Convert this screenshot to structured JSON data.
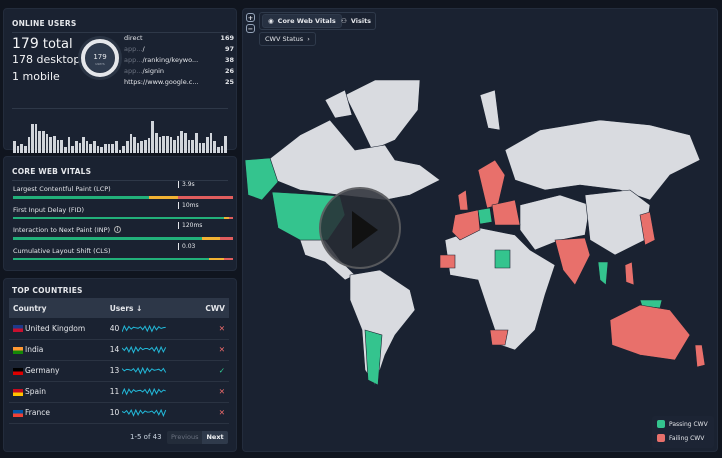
{
  "online": {
    "title": "ONLINE USERS",
    "total": "179",
    "total_label": "total",
    "desktop": "178",
    "desktop_label": "desktop",
    "mobile": "1",
    "mobile_label": "mobile",
    "donut_value": "179",
    "donut_label": "users",
    "referrers": [
      {
        "prefix": "",
        "name": "direct",
        "count": "169"
      },
      {
        "prefix": "app...",
        "name": "/",
        "count": "97"
      },
      {
        "prefix": "app...",
        "name": "/ranking/keywo...",
        "count": "38"
      },
      {
        "prefix": "app...",
        "name": "/signin",
        "count": "26"
      },
      {
        "prefix": "",
        "name": "https://www.google.c...",
        "count": "25"
      }
    ],
    "activity": [
      8,
      5,
      6,
      5,
      11,
      20,
      20,
      15,
      15,
      13,
      11,
      12,
      9,
      9,
      4,
      11,
      5,
      8,
      7,
      11,
      8,
      6,
      8,
      5,
      4,
      6,
      6,
      6,
      8,
      2,
      5,
      8,
      13,
      11,
      7,
      8,
      9,
      10,
      22,
      14,
      11,
      12,
      12,
      11,
      9,
      12,
      15,
      14,
      9,
      9,
      14,
      7,
      7,
      11,
      14,
      8,
      4,
      5,
      12
    ]
  },
  "cwv": {
    "title": "CORE WEB VITALS",
    "metrics": [
      {
        "label": "Largest Contentful Paint (LCP)",
        "value": "3.9s",
        "good": 62,
        "ni": 13,
        "poor": 25
      },
      {
        "label": "First Input Delay (FID)",
        "value": "10ms",
        "good": 96,
        "ni": 2,
        "poor": 2
      },
      {
        "label": "Interaction to Next Paint (INP)",
        "value": "120ms",
        "good": 86,
        "ni": 8,
        "poor": 6
      },
      {
        "label": "Cumulative Layout Shift (CLS)",
        "value": "0.03",
        "good": 89,
        "ni": 7,
        "poor": 4
      }
    ]
  },
  "countries": {
    "title": "TOP COUNTRIES",
    "headers": {
      "country": "Country",
      "users": "Users ↓",
      "cwv": "CWV"
    },
    "rows": [
      {
        "name": "United Kingdom",
        "users": "40",
        "pass": false,
        "flag": [
          "#1e3a8a",
          "#c8102e"
        ]
      },
      {
        "name": "India",
        "users": "14",
        "pass": false,
        "flag": [
          "#ff9933",
          "#138808"
        ]
      },
      {
        "name": "Germany",
        "users": "13",
        "pass": true,
        "flag": [
          "#000000",
          "#dd0000"
        ]
      },
      {
        "name": "Spain",
        "users": "11",
        "pass": false,
        "flag": [
          "#c60b1e",
          "#ffc400"
        ]
      },
      {
        "name": "France",
        "users": "10",
        "pass": false,
        "flag": [
          "#0055a4",
          "#ef4135"
        ]
      }
    ],
    "pagination": "1-5 of 43",
    "prev": "Previous",
    "next": "Next",
    "fail_symbol": "✕",
    "pass_symbol": "✓"
  },
  "map": {
    "tab_cwv": "Core Web Vitals",
    "tab_visits": "Visits",
    "filter": "CWV Status",
    "zoom_in": "+",
    "zoom_out": "−",
    "legend_pass": "Passing CWV",
    "legend_fail": "Failing CWV"
  },
  "colors": {
    "pass": "#34c48e",
    "fail": "#e8706b",
    "neutral": "#d9dbe0",
    "good": "#22b07a",
    "ni": "#f2b233",
    "poor": "#e05d5d"
  }
}
